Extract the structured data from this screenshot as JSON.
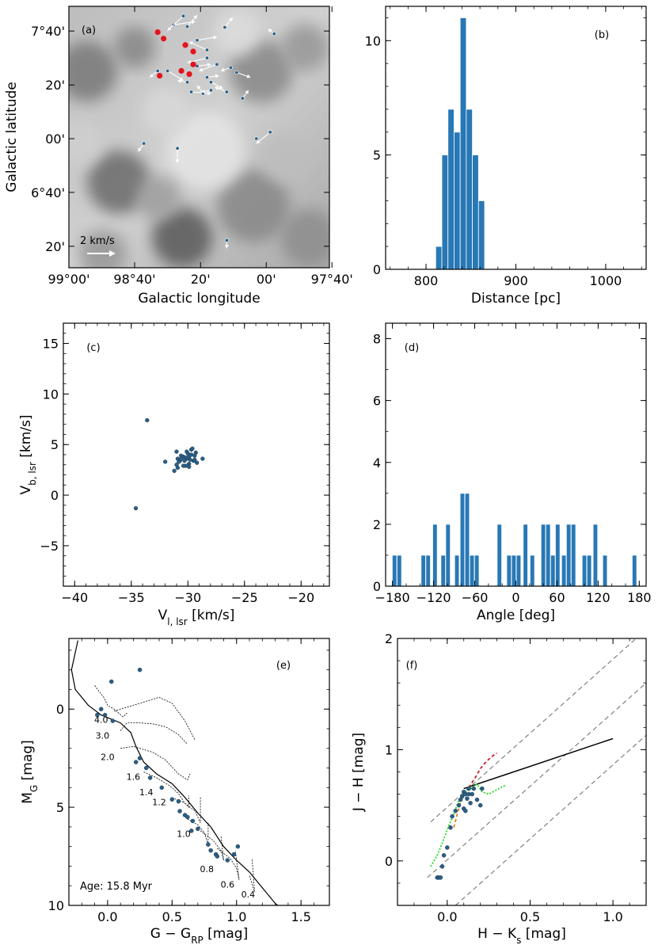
{
  "colors": {
    "bar": "#2878b5",
    "point": "#2a5f86",
    "red": "#e4141b",
    "arrow": "#ffffff"
  },
  "chart_data": [
    {
      "id": "a",
      "type": "scatter",
      "panel_label": "(a)",
      "xlabel": "Galactic longitude",
      "ylabel": "Galactic latitude",
      "xtick_labels": [
        "99°00'",
        "98°40'",
        "20'",
        "00'",
        "97°40'"
      ],
      "ytick_labels": [
        "7°40'",
        "20'",
        "00'",
        "6°40'",
        "20'"
      ],
      "scale_label": "2 km/s",
      "stars": [
        {
          "l": 98.47,
          "b": 7.705,
          "dl": -0.11,
          "db": 0.02
        },
        {
          "l": 98.42,
          "b": 7.76,
          "dl": 0.08,
          "db": -0.09
        },
        {
          "l": 98.4,
          "b": 7.695,
          "dl": -0.05,
          "db": 0.07
        },
        {
          "l": 98.35,
          "b": 7.61,
          "dl": -0.1,
          "db": 0.02
        },
        {
          "l": 98.3,
          "b": 7.5,
          "dl": 0.1,
          "db": -0.03
        },
        {
          "l": 98.55,
          "b": 7.42,
          "dl": 0.04,
          "db": -0.04
        },
        {
          "l": 98.5,
          "b": 7.42,
          "dl": -0.08,
          "db": -0.06
        },
        {
          "l": 98.4,
          "b": 7.35,
          "dl": 0.05,
          "db": 0.01
        },
        {
          "l": 98.38,
          "b": 7.29,
          "dl": -0.1,
          "db": -0.01
        },
        {
          "l": 98.32,
          "b": 7.28,
          "dl": 0.03,
          "db": 0.05
        },
        {
          "l": 98.28,
          "b": 7.3,
          "dl": 0.05,
          "db": -0.01
        },
        {
          "l": 98.2,
          "b": 7.29,
          "dl": 0.06,
          "db": 0.03
        },
        {
          "l": 98.35,
          "b": 7.45,
          "dl": -0.07,
          "db": 0.01
        },
        {
          "l": 98.25,
          "b": 7.46,
          "dl": 0.09,
          "db": -0.04
        },
        {
          "l": 98.18,
          "b": 7.44,
          "dl": 0.05,
          "db": -0.02
        },
        {
          "l": 98.15,
          "b": 7.41,
          "dl": -0.07,
          "db": -0.03
        },
        {
          "l": 98.3,
          "b": 7.55,
          "dl": 0.09,
          "db": 0.05
        },
        {
          "l": 98.3,
          "b": 7.38,
          "dl": -0.06,
          "db": 0.01
        },
        {
          "l": 98.28,
          "b": 7.35,
          "dl": -0.06,
          "db": -0.04
        },
        {
          "l": 98.12,
          "b": 7.25,
          "dl": -0.03,
          "db": 0.05
        },
        {
          "l": 98.21,
          "b": 7.69,
          "dl": -0.04,
          "db": 0.06
        },
        {
          "l": 97.96,
          "b": 7.65,
          "dl": 0.03,
          "db": 0.03
        },
        {
          "l": 98.05,
          "b": 7.0,
          "dl": 0.0,
          "db": 0.0
        },
        {
          "l": 97.98,
          "b": 7.04,
          "dl": 0.07,
          "db": -0.07
        },
        {
          "l": 98.62,
          "b": 6.97,
          "dl": 0.03,
          "db": -0.05
        },
        {
          "l": 98.45,
          "b": 6.94,
          "dl": 0.0,
          "db": -0.09
        },
        {
          "l": 98.2,
          "b": 6.37,
          "dl": 0.0,
          "db": -0.05
        }
      ],
      "red_points": [
        {
          "l": 98.55,
          "b": 7.66
        },
        {
          "l": 98.52,
          "b": 7.62
        },
        {
          "l": 98.41,
          "b": 7.58
        },
        {
          "l": 98.37,
          "b": 7.54
        },
        {
          "l": 98.37,
          "b": 7.46
        },
        {
          "l": 98.43,
          "b": 7.42
        },
        {
          "l": 98.39,
          "b": 7.4
        },
        {
          "l": 98.54,
          "b": 7.39
        }
      ]
    },
    {
      "id": "b",
      "type": "bar",
      "panel_label": "(b)",
      "xlabel": "Distance [pc]",
      "ylabel": "",
      "xlim": [
        755,
        1045
      ],
      "ylim": [
        0,
        11.5
      ],
      "xticks": [
        800,
        900,
        1000
      ],
      "yticks": [
        0,
        5,
        10
      ],
      "bins": [
        {
          "x0": 810.8,
          "x1": 817.6,
          "count": 1
        },
        {
          "x0": 817.6,
          "x1": 824.4,
          "count": 5
        },
        {
          "x0": 824.4,
          "x1": 831.2,
          "count": 7
        },
        {
          "x0": 831.2,
          "x1": 838.0,
          "count": 6
        },
        {
          "x0": 838.0,
          "x1": 844.8,
          "count": 11
        },
        {
          "x0": 844.8,
          "x1": 851.6,
          "count": 7
        },
        {
          "x0": 851.6,
          "x1": 858.4,
          "count": 5
        },
        {
          "x0": 858.4,
          "x1": 865.2,
          "count": 3
        }
      ]
    },
    {
      "id": "c",
      "type": "scatter",
      "panel_label": "(c)",
      "xlabel": "V",
      "xlabel_sub": "l, lsr",
      "xlabel_unit": " [km/s]",
      "ylabel": "V",
      "ylabel_sub": "b, lsr",
      "ylabel_unit": " [km/s]",
      "xlim": [
        -41,
        -17.5
      ],
      "ylim": [
        -9,
        17
      ],
      "xticks": [
        -40,
        -35,
        -30,
        -25,
        -20
      ],
      "yticks": [
        -5,
        0,
        5,
        10,
        15
      ],
      "x": [
        -33.6,
        -34.6,
        -30.1,
        -30.9,
        -29.9,
        -30.2,
        -29.5,
        -29.7,
        -30.4,
        -29.3,
        -30.7,
        -29.9,
        -29.8,
        -30.1,
        -30.6,
        -29.4,
        -31.0,
        -29.2,
        -30.2,
        -30.8,
        -29.4,
        -28.7,
        -30.9,
        -31.2,
        -30.4,
        -29.9,
        -31.0,
        -30.3,
        -32.0,
        -29.6,
        -29.7,
        -30.0,
        -30.6
      ],
      "y": [
        7.4,
        -1.3,
        3.6,
        3.6,
        3.8,
        3.7,
        3.4,
        4.5,
        3.8,
        4.2,
        3.4,
        3.1,
        3.5,
        4.3,
        3.9,
        3.5,
        3.0,
        3.2,
        2.9,
        3.3,
        3.9,
        3.6,
        2.7,
        2.4,
        2.9,
        2.8,
        4.3,
        3.4,
        3.3,
        4.6,
        4.0,
        4.1,
        3.6
      ]
    },
    {
      "id": "d",
      "type": "bar",
      "panel_label": "(d)",
      "xlabel": "Angle [deg]",
      "ylabel": "",
      "xlim": [
        -190,
        190
      ],
      "ylim": [
        0,
        8.5
      ],
      "xticks": [
        -180,
        -120,
        -60,
        0,
        60,
        120,
        180
      ],
      "yticks": [
        0,
        2,
        4,
        6,
        8
      ],
      "bins": [
        {
          "c": -177,
          "count": 1
        },
        {
          "c": -170,
          "count": 1
        },
        {
          "c": -135,
          "count": 1
        },
        {
          "c": -128,
          "count": 1
        },
        {
          "c": -118,
          "count": 2
        },
        {
          "c": -106,
          "count": 1
        },
        {
          "c": -99,
          "count": 2
        },
        {
          "c": -86,
          "count": 1
        },
        {
          "c": -78,
          "count": 3
        },
        {
          "c": -71,
          "count": 3
        },
        {
          "c": -64,
          "count": 1
        },
        {
          "c": -57,
          "count": 1
        },
        {
          "c": -24,
          "count": 2
        },
        {
          "c": -10,
          "count": 1
        },
        {
          "c": -3,
          "count": 1
        },
        {
          "c": 4,
          "count": 1
        },
        {
          "c": 14,
          "count": 2
        },
        {
          "c": 24,
          "count": 1
        },
        {
          "c": 40,
          "count": 2
        },
        {
          "c": 47,
          "count": 2
        },
        {
          "c": 54,
          "count": 1
        },
        {
          "c": 61,
          "count": 2
        },
        {
          "c": 70,
          "count": 1
        },
        {
          "c": 77,
          "count": 2
        },
        {
          "c": 84,
          "count": 2
        },
        {
          "c": 100,
          "count": 1
        },
        {
          "c": 107,
          "count": 1
        },
        {
          "c": 116,
          "count": 2
        },
        {
          "c": 130,
          "count": 1
        },
        {
          "c": 173,
          "count": 1
        }
      ],
      "bin_width": 6.6
    },
    {
      "id": "e",
      "type": "scatter",
      "panel_label": "(e)",
      "xlabel": "G − G",
      "xlabel_sub": "RP",
      "xlabel_unit": " [mag]",
      "ylabel": "M",
      "ylabel_sub": "G",
      "ylabel_unit": " [mag]",
      "xlim": [
        -0.3,
        1.72
      ],
      "ylim": [
        10,
        -3.6
      ],
      "xticks": [
        0.0,
        0.5,
        1.0,
        1.5
      ],
      "yticks": [
        0,
        5,
        10
      ],
      "age_label": "Age: 15.8 Myr",
      "mass_labels": [
        "4.0",
        "3.0",
        "2.0",
        "1.6",
        "1.4",
        "1.2",
        "1.0",
        "0.8",
        "0.6",
        "0.4"
      ],
      "mass_label_pos": [
        [
          -0.05,
          0.7
        ],
        [
          -0.04,
          1.5
        ],
        [
          0.0,
          2.6
        ],
        [
          0.2,
          3.6
        ],
        [
          0.3,
          4.4
        ],
        [
          0.4,
          4.9
        ],
        [
          0.59,
          6.5
        ],
        [
          0.77,
          8.3
        ],
        [
          0.93,
          9.1
        ],
        [
          1.09,
          9.6
        ]
      ],
      "isochrone": [
        [
          -0.23,
          -3.5
        ],
        [
          -0.28,
          -2.0
        ],
        [
          -0.25,
          -1.0
        ],
        [
          -0.15,
          -0.2
        ],
        [
          -0.05,
          0.3
        ],
        [
          0.1,
          0.7
        ],
        [
          0.18,
          1.2
        ],
        [
          0.22,
          1.9
        ],
        [
          0.28,
          2.7
        ],
        [
          0.38,
          3.3
        ],
        [
          0.5,
          3.8
        ],
        [
          0.6,
          4.5
        ],
        [
          0.7,
          5.3
        ],
        [
          0.8,
          6.0
        ],
        [
          0.9,
          7.0
        ],
        [
          1.0,
          7.7
        ],
        [
          1.1,
          8.3
        ],
        [
          1.2,
          9.1
        ],
        [
          1.3,
          9.9
        ],
        [
          1.32,
          10
        ]
      ],
      "tracks": [
        [
          [
            -0.1,
            -1.2
          ],
          [
            -0.03,
            -0.6
          ],
          [
            0.0,
            -0.2
          ],
          [
            0.05,
            0.0
          ],
          [
            0.12,
            0.4
          ],
          [
            0.15,
            0.2
          ]
        ],
        [
          [
            0.05,
            0.1
          ],
          [
            0.2,
            -0.2
          ],
          [
            0.3,
            -0.4
          ],
          [
            0.4,
            -0.6
          ],
          [
            0.5,
            -0.3
          ],
          [
            0.6,
            0.6
          ],
          [
            0.68,
            1.6
          ]
        ],
        [
          [
            0.1,
            1.1
          ],
          [
            0.15,
            0.7
          ],
          [
            0.25,
            0.7
          ],
          [
            0.35,
            0.75
          ],
          [
            0.45,
            0.9
          ],
          [
            0.55,
            1.3
          ],
          [
            0.62,
            1.8
          ]
        ],
        [
          [
            0.1,
            2.0
          ],
          [
            0.2,
            1.9
          ],
          [
            0.35,
            2.2
          ],
          [
            0.45,
            2.6
          ],
          [
            0.55,
            3.3
          ],
          [
            0.62,
            3.6
          ],
          [
            0.64,
            3.3
          ]
        ],
        [
          [
            0.28,
            3.2
          ],
          [
            0.38,
            3.5
          ],
          [
            0.48,
            3.9
          ],
          [
            0.55,
            4.3
          ],
          [
            0.6,
            4.8
          ],
          [
            0.63,
            5.0
          ],
          [
            0.63,
            4.4
          ]
        ],
        [
          [
            0.5,
            4.5
          ],
          [
            0.6,
            4.8
          ],
          [
            0.68,
            5.2
          ],
          [
            0.72,
            5.8
          ],
          [
            0.72,
            4.5
          ]
        ],
        [
          [
            0.62,
            5.6
          ],
          [
            0.7,
            5.9
          ],
          [
            0.75,
            6.3
          ],
          [
            0.78,
            6.9
          ],
          [
            0.78,
            5.8
          ]
        ],
        [
          [
            0.72,
            6.2
          ],
          [
            0.82,
            6.7
          ],
          [
            0.88,
            7.2
          ],
          [
            0.9,
            7.7
          ],
          [
            0.88,
            6.5
          ]
        ],
        [
          [
            0.85,
            7.1
          ],
          [
            0.95,
            7.6
          ],
          [
            1.0,
            8.1
          ],
          [
            1.02,
            8.7
          ],
          [
            0.99,
            7.2
          ]
        ],
        [
          [
            1.1,
            8.5
          ],
          [
            1.12,
            8.9
          ],
          [
            1.14,
            9.3
          ],
          [
            1.12,
            7.6
          ]
        ]
      ],
      "x": [
        -0.05,
        -0.02,
        0.04,
        -0.08,
        0.03,
        0.25,
        0.22,
        0.3,
        0.33,
        0.42,
        0.5,
        0.55,
        0.56,
        0.6,
        0.62,
        0.66,
        0.65,
        0.7,
        0.78,
        0.8,
        0.84,
        0.85,
        0.93,
        0.98,
        1.01,
        0.25
      ],
      "y": [
        0.0,
        0.3,
        0.6,
        0.3,
        -1.4,
        2.5,
        2.7,
        3.0,
        3.5,
        4.0,
        4.6,
        4.7,
        5.2,
        5.4,
        5.5,
        5.7,
        6.2,
        6.1,
        6.9,
        7.2,
        7.4,
        7.5,
        7.7,
        7.4,
        7.0,
        -2.0
      ]
    },
    {
      "id": "f",
      "type": "scatter",
      "panel_label": "(f)",
      "xlabel": "H − K",
      "xlabel_sub": "s",
      "xlabel_unit": " [mag]",
      "ylabel": "J − H [mag]",
      "ylabel_sub": "",
      "ylabel_unit": "",
      "xlim": [
        -0.3,
        1.2
      ],
      "ylim": [
        -0.4,
        2.0
      ],
      "xticks": [
        0.0,
        0.5,
        1.0
      ],
      "yticks": [
        0,
        1,
        2
      ],
      "reddening_lines": [
        [
          [
            -0.1,
            0.35
          ],
          [
            1.2,
            2.08
          ]
        ],
        [
          [
            -0.12,
            -0.15
          ],
          [
            1.2,
            1.6
          ]
        ],
        [
          [
            0.05,
            -0.4
          ],
          [
            1.2,
            1.13
          ]
        ]
      ],
      "black_line": [
        [
          0.1,
          0.65
        ],
        [
          1.0,
          1.1
        ]
      ],
      "red_dashed": [
        [
          0.13,
          0.66
        ],
        [
          0.17,
          0.75
        ],
        [
          0.2,
          0.83
        ],
        [
          0.24,
          0.9
        ],
        [
          0.28,
          0.95
        ],
        [
          0.3,
          0.97
        ]
      ],
      "green_dotted": [
        [
          -0.1,
          -0.05
        ],
        [
          -0.06,
          0.05
        ],
        [
          -0.02,
          0.2
        ],
        [
          0.01,
          0.32
        ],
        [
          0.04,
          0.42
        ],
        [
          0.07,
          0.55
        ],
        [
          0.1,
          0.6
        ],
        [
          0.14,
          0.65
        ],
        [
          0.18,
          0.69
        ],
        [
          0.21,
          0.62
        ],
        [
          0.25,
          0.6
        ],
        [
          0.3,
          0.64
        ],
        [
          0.35,
          0.68
        ]
      ],
      "orange_dashed": [
        [
          0.04,
          0.3
        ],
        [
          0.06,
          0.42
        ],
        [
          0.08,
          0.52
        ],
        [
          0.1,
          0.6
        ]
      ],
      "x": [
        -0.06,
        -0.05,
        -0.04,
        -0.03,
        -0.02,
        0.0,
        0.02,
        0.03,
        0.05,
        0.07,
        0.08,
        0.09,
        0.1,
        0.1,
        0.11,
        0.12,
        0.13,
        0.14,
        0.15,
        0.16,
        0.18,
        0.2,
        0.21,
        0.11,
        0.13
      ],
      "y": [
        -0.15,
        -0.15,
        -0.15,
        -0.05,
        0.05,
        0.12,
        0.3,
        0.4,
        0.45,
        0.5,
        0.55,
        0.58,
        0.47,
        0.62,
        0.6,
        0.56,
        0.65,
        0.52,
        0.6,
        0.65,
        0.55,
        0.5,
        0.65,
        0.45,
        0.6
      ]
    }
  ]
}
